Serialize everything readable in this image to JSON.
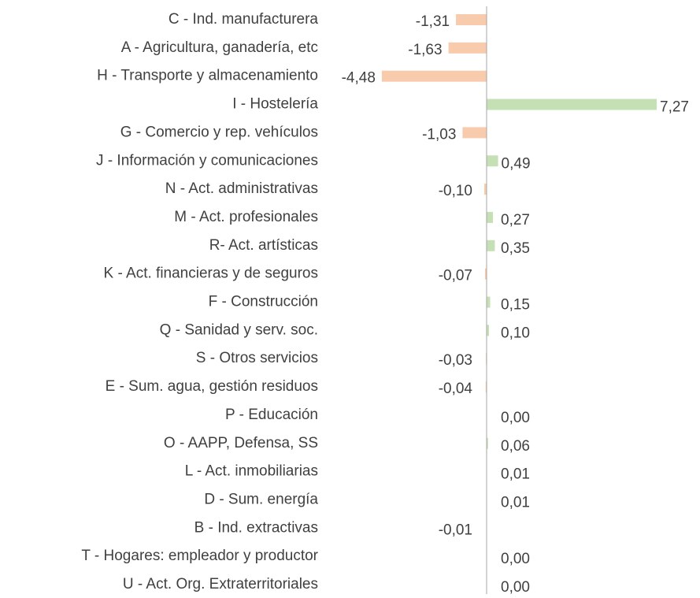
{
  "chart_data": {
    "type": "bar",
    "orientation": "horizontal",
    "categories": [
      "C - Ind. manufacturera",
      "A - Agricultura, ganadería, etc",
      "H - Transporte y almacenamiento",
      "I - Hostelería",
      "G - Comercio y rep. vehículos",
      "J - Información y comunicaciones",
      "N - Act. administrativas",
      "M - Act. profesionales",
      "R-  Act. artísticas",
      "K - Act. financieras y de seguros",
      "F - Construcción",
      "Q - Sanidad y serv. soc.",
      "S - Otros servicios",
      "E - Sum. agua, gestión residuos",
      "P - Educación",
      "O - AAPP, Defensa, SS",
      "L - Act. inmobiliarias",
      "D - Sum. energía ",
      "B - Ind. extractivas",
      "T - Hogares: empleador y productor",
      "U - Act. Org. Extraterritoriales"
    ],
    "values": [
      -1.31,
      -1.63,
      -4.48,
      7.27,
      -1.03,
      0.49,
      -0.1,
      0.27,
      0.35,
      -0.07,
      0.15,
      0.1,
      -0.03,
      -0.04,
      0.0,
      0.06,
      0.01,
      0.01,
      -0.01,
      0.0,
      0.0
    ],
    "value_labels": [
      "-1,31",
      "-1,63",
      "-4,48",
      "7,27",
      "-1,03",
      "0,49",
      "-0,10",
      "0,27",
      "0,35",
      "-0,07",
      "0,15",
      "0,10",
      "-0,03",
      "-0,04",
      "0,00",
      "0,06",
      "0,01",
      "0,01",
      "-0,01",
      "0,00",
      "0,00"
    ],
    "positive_color": "#c5e0b4",
    "negative_color": "#f8cbad"
  }
}
